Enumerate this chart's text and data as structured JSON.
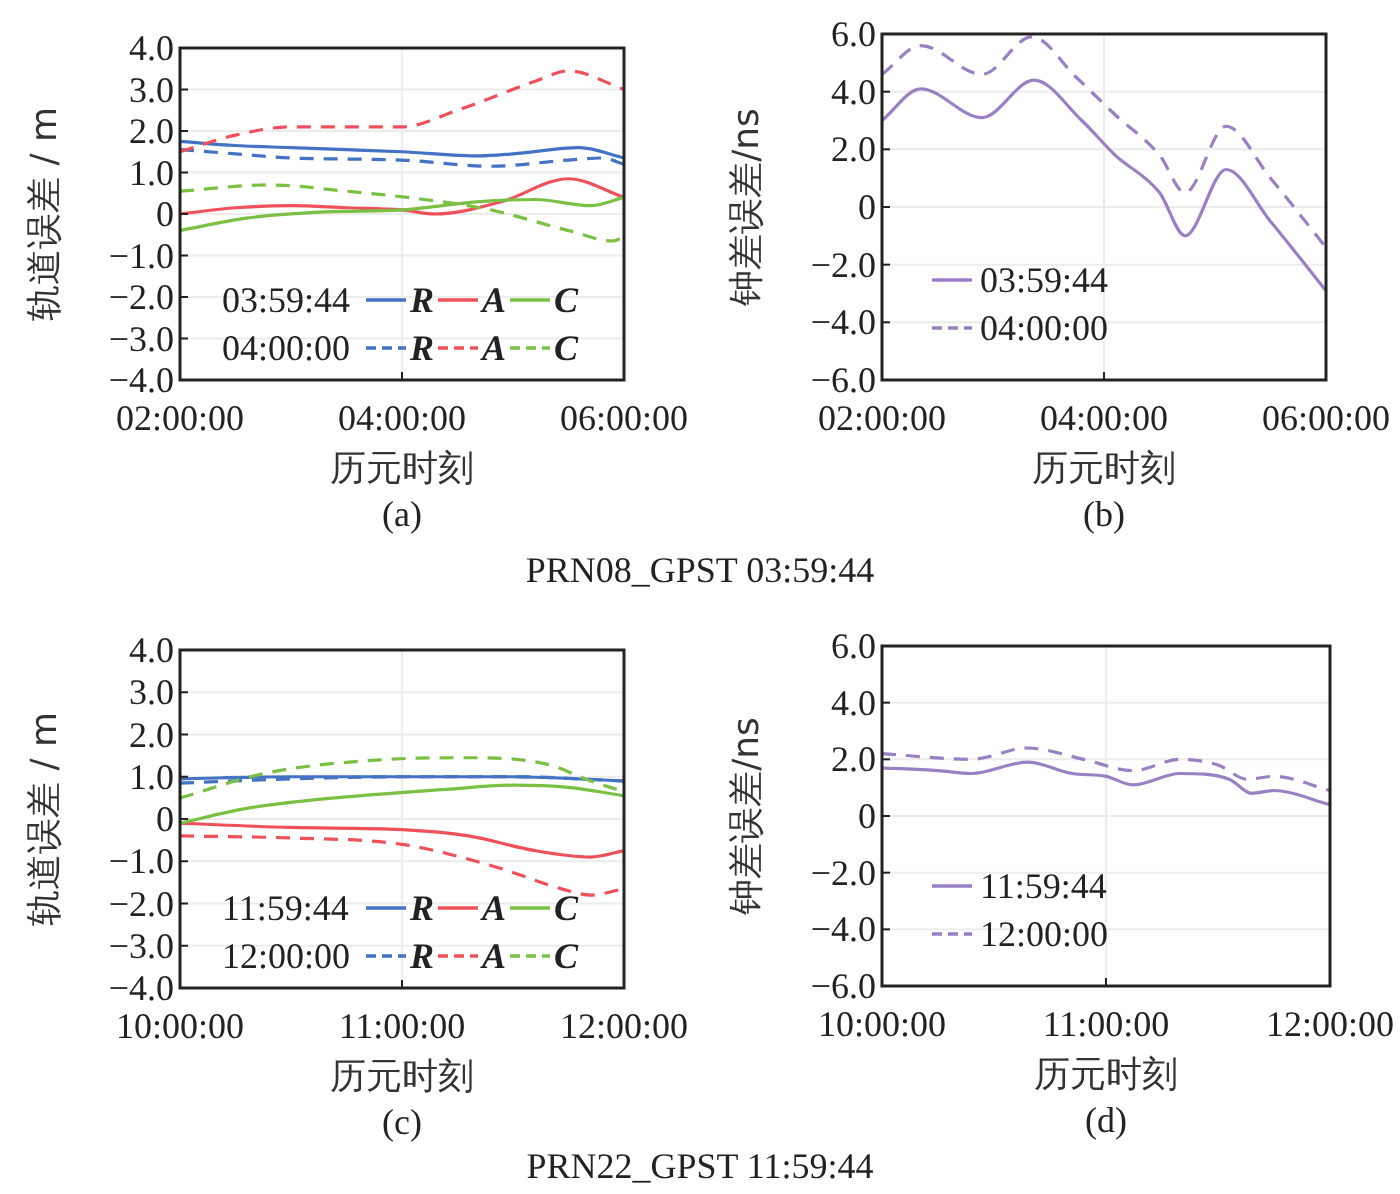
{
  "chart_data": [
    {
      "type": "line",
      "ylabel": "轨道误差 / m",
      "xlabel": "历元时刻",
      "annotations": [
        "03:59:44",
        "04:00:00",
        "(a)",
        "PRN08_GPST 03:59:44"
      ],
      "xlim": [
        2,
        6
      ],
      "xticks": [
        {
          "value": 2,
          "label": "02:00:00"
        },
        {
          "value": 4,
          "label": "04:00:00"
        },
        {
          "value": 6,
          "label": "06:00:00"
        }
      ],
      "ylim": [
        -4,
        4
      ],
      "yticks": [
        {
          "value": 4,
          "label": "4.0"
        },
        {
          "value": 3,
          "label": "3.0"
        },
        {
          "value": 2,
          "label": "2.0"
        },
        {
          "value": 1,
          "label": "1.0"
        },
        {
          "value": 0,
          "label": "0"
        },
        {
          "value": -1,
          "label": "−1.0"
        },
        {
          "value": -2,
          "label": "−2.0"
        },
        {
          "value": -3,
          "label": "−3.0"
        },
        {
          "value": -4,
          "label": "−4.0"
        }
      ],
      "grid": true,
      "legend": "bottom",
      "series": [
        {
          "name": "R",
          "color": "#4472c4",
          "line_style": "solid",
          "x": [
            2,
            2.5,
            3,
            3.5,
            4,
            4.7,
            5,
            5.6,
            6
          ],
          "values": [
            1.75,
            1.65,
            1.6,
            1.55,
            1.5,
            1.4,
            1.45,
            1.6,
            1.35
          ]
        },
        {
          "name": "A",
          "color": "#f0505a",
          "line_style": "solid",
          "x": [
            2,
            2.5,
            3,
            3.5,
            4,
            4.3,
            4.9,
            5.5,
            6
          ],
          "values": [
            0,
            0.15,
            0.2,
            0.15,
            0.1,
            0,
            0.3,
            0.85,
            0.4
          ]
        },
        {
          "name": "C",
          "color": "#7ac143",
          "line_style": "solid",
          "x": [
            2,
            2.6,
            3.3,
            4,
            4.7,
            5.2,
            5.7,
            6
          ],
          "values": [
            -0.4,
            -0.1,
            0.05,
            0.1,
            0.3,
            0.35,
            0.2,
            0.4
          ]
        },
        {
          "name": "R",
          "color": "#4472c4",
          "line_style": "dashed",
          "x": [
            2,
            2.5,
            3,
            4,
            4.8,
            5.5,
            5.8,
            6
          ],
          "values": [
            1.55,
            1.45,
            1.35,
            1.3,
            1.15,
            1.3,
            1.35,
            1.2
          ]
        },
        {
          "name": "A",
          "color": "#f0505a",
          "line_style": "dashed",
          "x": [
            2,
            2.5,
            3,
            4,
            4.5,
            5.2,
            5.5,
            6
          ],
          "values": [
            1.5,
            1.9,
            2.1,
            2.1,
            2.5,
            3.2,
            3.45,
            3.0
          ]
        },
        {
          "name": "C",
          "color": "#7ac143",
          "line_style": "dashed",
          "x": [
            2,
            2.8,
            3.5,
            4.2,
            4.8,
            5.5,
            5.9,
            6
          ],
          "values": [
            0.55,
            0.7,
            0.55,
            0.35,
            0.1,
            -0.4,
            -0.65,
            -0.55
          ]
        }
      ]
    },
    {
      "type": "line",
      "ylabel": "钟差误差/ns",
      "xlabel": "历元时刻",
      "annotations": [
        "(b)"
      ],
      "xlim": [
        2,
        6
      ],
      "xticks": [
        {
          "value": 2,
          "label": "02:00:00"
        },
        {
          "value": 4,
          "label": "04:00:00"
        },
        {
          "value": 6,
          "label": "06:00:00"
        }
      ],
      "ylim": [
        -6,
        6
      ],
      "yticks": [
        {
          "value": 6,
          "label": "6.0"
        },
        {
          "value": 4,
          "label": "4.0"
        },
        {
          "value": 2,
          "label": "2.0"
        },
        {
          "value": 0,
          "label": "0"
        },
        {
          "value": -2,
          "label": "−2.0"
        },
        {
          "value": -4,
          "label": "−4.0"
        },
        {
          "value": -6,
          "label": "−6.0"
        }
      ],
      "grid": true,
      "legend": "bottom left",
      "series": [
        {
          "name": "03:59:44",
          "color": "#9b7fc4",
          "line_style": "solid",
          "x": [
            2,
            2.35,
            2.9,
            3.37,
            3.8,
            4.1,
            4.5,
            4.73,
            5.1,
            5.5,
            6
          ],
          "values": [
            3.0,
            4.1,
            3.1,
            4.4,
            3.0,
            1.8,
            0.5,
            -1.0,
            1.3,
            -0.5,
            -2.9
          ]
        },
        {
          "name": "04:00:00",
          "color": "#9b7fc4",
          "line_style": "dashed",
          "x": [
            2,
            2.35,
            2.9,
            3.35,
            3.75,
            4.1,
            4.5,
            4.73,
            5.1,
            5.5,
            6
          ],
          "values": [
            4.6,
            5.6,
            4.6,
            5.9,
            4.5,
            3.2,
            1.8,
            0.5,
            2.8,
            1.0,
            -1.4
          ]
        }
      ]
    },
    {
      "type": "line",
      "ylabel": "轨道误差 / m",
      "xlabel": "历元时刻",
      "annotations": [
        "11:59:44",
        "12:00:00",
        "(c)",
        "PRN22_GPST 11:59:44"
      ],
      "xlim": [
        10,
        12
      ],
      "xticks": [
        {
          "value": 10,
          "label": "10:00:00"
        },
        {
          "value": 11,
          "label": "11:00:00"
        },
        {
          "value": 12,
          "label": "12:00:00"
        }
      ],
      "ylim": [
        -4,
        4
      ],
      "yticks": [
        {
          "value": 4,
          "label": "4.0"
        },
        {
          "value": 3,
          "label": "3.0"
        },
        {
          "value": 2,
          "label": "2.0"
        },
        {
          "value": 1,
          "label": "1.0"
        },
        {
          "value": 0,
          "label": "0"
        },
        {
          "value": -1,
          "label": "−1.0"
        },
        {
          "value": -2,
          "label": "−2.0"
        },
        {
          "value": -3,
          "label": "−3.0"
        },
        {
          "value": -4,
          "label": "−4.0"
        }
      ],
      "grid": true,
      "legend": "bottom",
      "series": [
        {
          "name": "R",
          "color": "#4472c4",
          "line_style": "solid",
          "x": [
            10,
            10.5,
            11,
            11.5,
            12
          ],
          "values": [
            0.95,
            1.0,
            1.0,
            1.0,
            0.9
          ]
        },
        {
          "name": "A",
          "color": "#f0505a",
          "line_style": "solid",
          "x": [
            10,
            10.5,
            11,
            11.3,
            11.6,
            11.85,
            12
          ],
          "values": [
            -0.1,
            -0.2,
            -0.25,
            -0.4,
            -0.75,
            -0.9,
            -0.75
          ]
        },
        {
          "name": "C",
          "color": "#7ac143",
          "line_style": "solid",
          "x": [
            10,
            10.3,
            10.7,
            11.2,
            11.5,
            11.75,
            12
          ],
          "values": [
            -0.1,
            0.25,
            0.5,
            0.7,
            0.8,
            0.75,
            0.55
          ]
        },
        {
          "name": "R",
          "color": "#4472c4",
          "line_style": "dashed",
          "x": [
            10,
            10.5,
            11,
            11.5,
            12
          ],
          "values": [
            0.85,
            0.95,
            1.0,
            1.0,
            0.9
          ]
        },
        {
          "name": "A",
          "color": "#f0505a",
          "line_style": "dashed",
          "x": [
            10,
            10.5,
            11,
            11.4,
            11.75,
            11.85,
            12
          ],
          "values": [
            -0.4,
            -0.45,
            -0.6,
            -1.1,
            -1.7,
            -1.8,
            -1.65
          ]
        },
        {
          "name": "C",
          "color": "#7ac143",
          "line_style": "dashed",
          "x": [
            10,
            10.4,
            10.9,
            11.3,
            11.65,
            11.85,
            12
          ],
          "values": [
            0.5,
            1.1,
            1.4,
            1.45,
            1.3,
            0.9,
            0.65
          ]
        }
      ]
    },
    {
      "type": "line",
      "ylabel": "钟差误差/ns",
      "xlabel": "历元时刻",
      "annotations": [
        "(d)"
      ],
      "xlim": [
        10,
        12
      ],
      "xticks": [
        {
          "value": 10,
          "label": "10:00:00"
        },
        {
          "value": 11,
          "label": "11:00:00"
        },
        {
          "value": 12,
          "label": "12:00:00"
        }
      ],
      "ylim": [
        -6,
        6
      ],
      "yticks": [
        {
          "value": 6,
          "label": "6.0"
        },
        {
          "value": 4,
          "label": "4.0"
        },
        {
          "value": 2,
          "label": "2.0"
        },
        {
          "value": 0,
          "label": "0"
        },
        {
          "value": -2,
          "label": "−2.0"
        },
        {
          "value": -4,
          "label": "−4.0"
        },
        {
          "value": -6,
          "label": "−6.0"
        }
      ],
      "grid": true,
      "legend": "bottom left",
      "series": [
        {
          "name": "11:59:44",
          "color": "#9b7fc4",
          "line_style": "solid",
          "x": [
            10,
            10.25,
            10.4,
            10.65,
            10.85,
            11,
            11.12,
            11.33,
            11.55,
            11.65,
            11.75,
            12
          ],
          "values": [
            1.7,
            1.6,
            1.5,
            1.9,
            1.5,
            1.4,
            1.1,
            1.5,
            1.3,
            0.8,
            0.9,
            0.4
          ]
        },
        {
          "name": "12:00:00",
          "color": "#9b7fc4",
          "line_style": "dashed",
          "x": [
            10,
            10.4,
            10.65,
            10.9,
            11.12,
            11.33,
            11.5,
            11.63,
            11.75,
            12
          ],
          "values": [
            2.2,
            2.0,
            2.4,
            2.0,
            1.6,
            2.0,
            1.8,
            1.3,
            1.4,
            0.9
          ]
        }
      ]
    }
  ]
}
